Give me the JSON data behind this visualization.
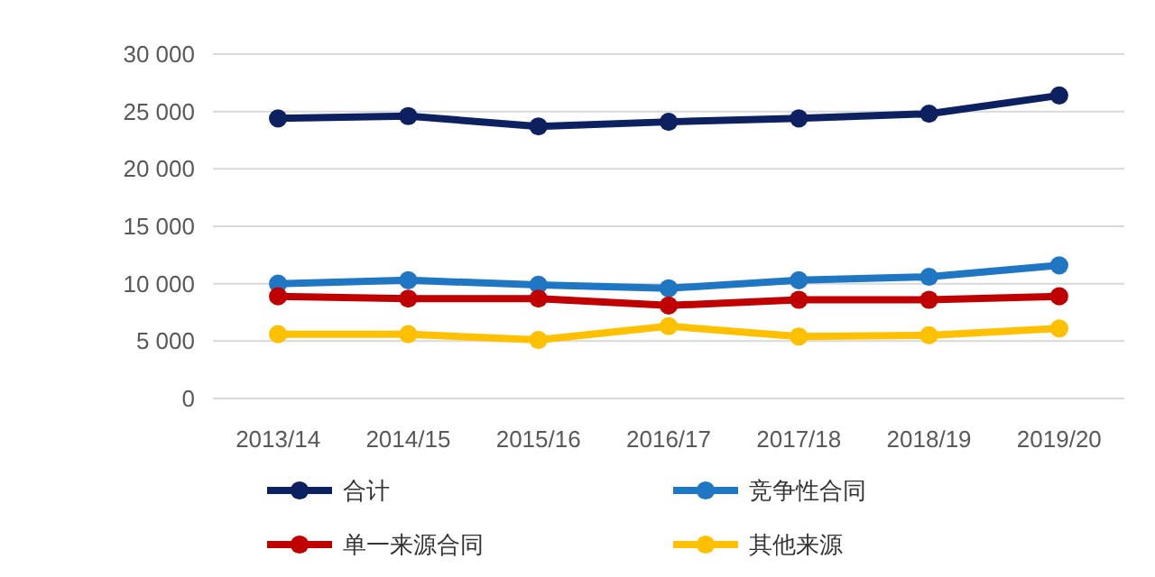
{
  "chart_data": {
    "type": "line",
    "categories": [
      "2013/14",
      "2014/15",
      "2015/16",
      "2016/17",
      "2017/18",
      "2018/19",
      "2019/20"
    ],
    "series": [
      {
        "name": "合计",
        "color": "#0d2160",
        "values": [
          24400,
          24600,
          23700,
          24100,
          24400,
          24800,
          26400
        ]
      },
      {
        "name": "竞争性合同",
        "color": "#1f77c4",
        "values": [
          10000,
          10300,
          9900,
          9600,
          10300,
          10600,
          11600
        ]
      },
      {
        "name": "单一来源合同",
        "color": "#c00000",
        "values": [
          8900,
          8700,
          8700,
          8100,
          8600,
          8600,
          8900
        ]
      },
      {
        "name": "其他来源",
        "color": "#ffc000",
        "values": [
          5600,
          5600,
          5100,
          6300,
          5400,
          5500,
          6100
        ]
      }
    ],
    "ylim": [
      0,
      30000
    ],
    "yticks": [
      {
        "value": 0,
        "label": "0"
      },
      {
        "value": 5000,
        "label": "5 000"
      },
      {
        "value": 10000,
        "label": "10 000"
      },
      {
        "value": 15000,
        "label": "15 000"
      },
      {
        "value": 20000,
        "label": "20 000"
      },
      {
        "value": 25000,
        "label": "25 000"
      },
      {
        "value": 30000,
        "label": "30 000"
      }
    ],
    "grid": "y",
    "legend": "bottom",
    "marker": "circle",
    "line_style": "solid"
  }
}
